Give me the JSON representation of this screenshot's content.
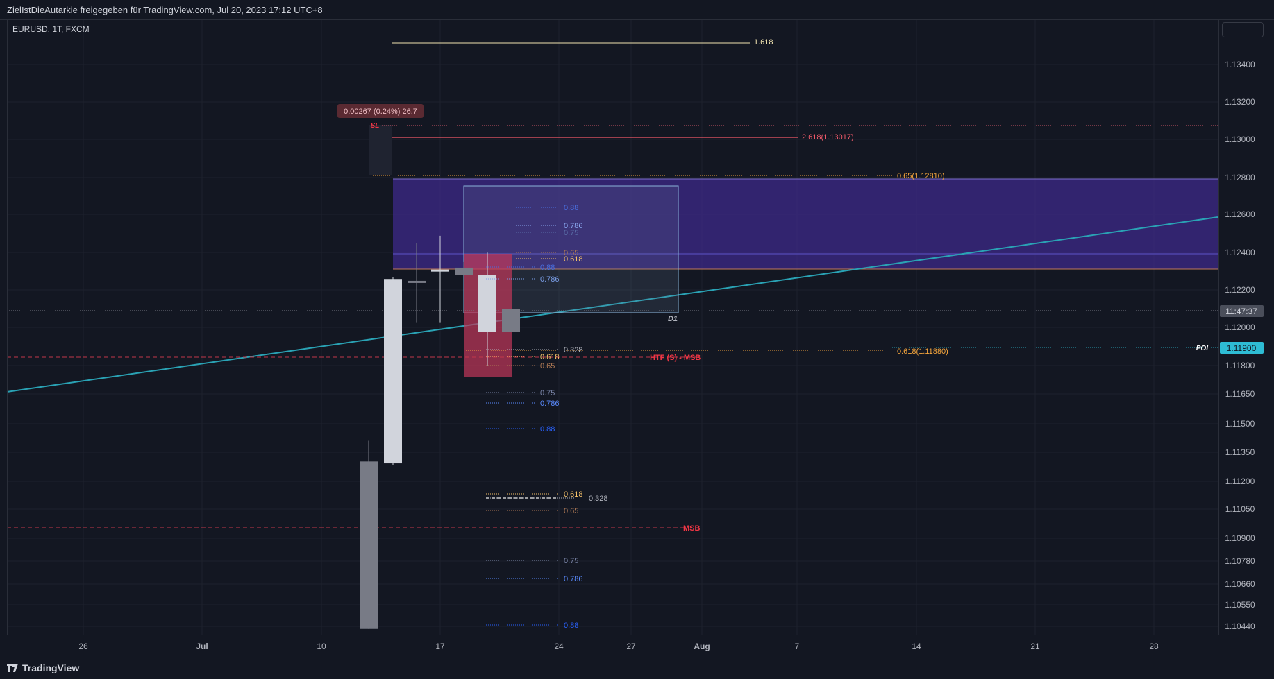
{
  "header": {
    "caption": "ZielIstDieAutarkie freigegeben für TradingView.com, Jul 20, 2023 17:12 UTC+8"
  },
  "symbol_info": "EURUSD, 1T, FXCM",
  "footer": {
    "brand": "TradingView"
  },
  "colors": {
    "background": "#131722",
    "up": "#d1d4dc",
    "down": "#787b86",
    "zone": "#3d2a8a",
    "trendline": "#2aa3b5",
    "red": "#f23645",
    "orange": "#f7a63c",
    "blue": "#2962ff"
  },
  "chart_data": {
    "type": "candlestick",
    "symbol": "EURUSD",
    "x_ticks": [
      "26",
      "Jul",
      "10",
      "17",
      "24",
      "27",
      "Aug",
      "7",
      "14",
      "21",
      "28"
    ],
    "y_ticks": [
      "1.13400",
      "1.13200",
      "1.13000",
      "1.12800",
      "1.12600",
      "1.12400",
      "1.12200",
      "1.12000",
      "1.11800",
      "1.11650",
      "1.11500",
      "1.11350",
      "1.11200",
      "1.11050",
      "1.10900",
      "1.10780",
      "1.10660",
      "1.10550",
      "1.10440"
    ],
    "price_label": "11:47:37",
    "poi_label": "POI",
    "poi_price": "1.11900",
    "candles": [
      {
        "date": "Jul 13",
        "open": 1.1129,
        "high": 1.114,
        "low": 1.104,
        "close": 1.104
      },
      {
        "date": "Jul 14",
        "open": 1.1128,
        "high": 1.1227,
        "low": 1.1127,
        "close": 1.1226
      },
      {
        "date": "Jul 17",
        "open": 1.1225,
        "high": 1.1245,
        "low": 1.1203,
        "close": 1.1224
      },
      {
        "date": "Jul 18",
        "open": 1.1231,
        "high": 1.1249,
        "low": 1.1203,
        "close": 1.1231
      },
      {
        "date": "Jul 19",
        "open": 1.1232,
        "high": 1.1235,
        "low": 1.1228,
        "close": 1.1228
      },
      {
        "date": "Jul 20",
        "open": 1.1198,
        "high": 1.124,
        "low": 1.118,
        "close": 1.1228
      },
      {
        "date": "Jul 21",
        "open": 1.121,
        "high": 1.121,
        "low": 1.1198,
        "close": 1.1198
      }
    ],
    "annotations": [
      {
        "text": "1.618"
      },
      {
        "text": "0.00267 (0.24%) 26.7"
      },
      {
        "text": "SL"
      },
      {
        "text": "2.618(1.13017)"
      },
      {
        "text": "0.65(1.12810)"
      },
      {
        "text": "D1"
      },
      {
        "text": "HTF (S) - MSB"
      },
      {
        "text": "0.618(1.11880)"
      },
      {
        "text": "MSB"
      }
    ],
    "fib_labels": [
      {
        "text": "0.88"
      },
      {
        "text": "0.786"
      },
      {
        "text": "0.75"
      },
      {
        "text": "0.65"
      },
      {
        "text": "0.618"
      },
      {
        "text": "0.88"
      },
      {
        "text": "0.786"
      },
      {
        "text": "0.328"
      },
      {
        "text": "0.618"
      },
      {
        "text": "0.65"
      },
      {
        "text": "0.75"
      },
      {
        "text": "0.786"
      },
      {
        "text": "0.88"
      },
      {
        "text": "0.618"
      },
      {
        "text": "0.328"
      },
      {
        "text": "0.65"
      },
      {
        "text": "0.75"
      },
      {
        "text": "0.786"
      },
      {
        "text": "0.88"
      }
    ]
  }
}
